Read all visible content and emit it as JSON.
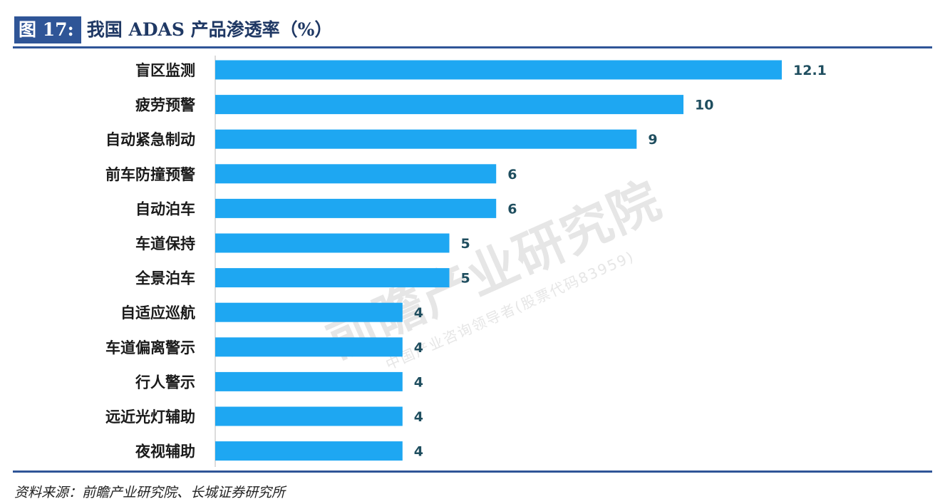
{
  "figure": {
    "number": "图 17:",
    "title": "我国 ADAS 产品渗透率（%）"
  },
  "source": "资料来源：前瞻产业研究院、长城证券研究所",
  "watermark": {
    "main": "前瞻产业研究院",
    "sub": "中国产业咨询领导者(股票代码83959)"
  },
  "colors": {
    "bar": "#1ea7f2",
    "header_bg": "#2f5597",
    "value_text": "#1f4e5f"
  },
  "chart_data": {
    "type": "bar",
    "orientation": "horizontal",
    "categories": [
      "盲区监测",
      "疲劳预警",
      "自动紧急制动",
      "前车防撞预警",
      "自动泊车",
      "车道保持",
      "全景泊车",
      "自适应巡航",
      "车道偏离警示",
      "行人警示",
      "远近光灯辅助",
      "夜视辅助"
    ],
    "values": [
      12.1,
      10,
      9,
      6,
      6,
      5,
      5,
      4,
      4,
      4,
      4,
      4
    ],
    "value_labels": [
      "12.1",
      "10",
      "9",
      "6",
      "6",
      "5",
      "5",
      "4",
      "4",
      "4",
      "4",
      "4"
    ],
    "xlim": [
      0,
      12.1
    ],
    "grid": false,
    "legend": "none"
  }
}
